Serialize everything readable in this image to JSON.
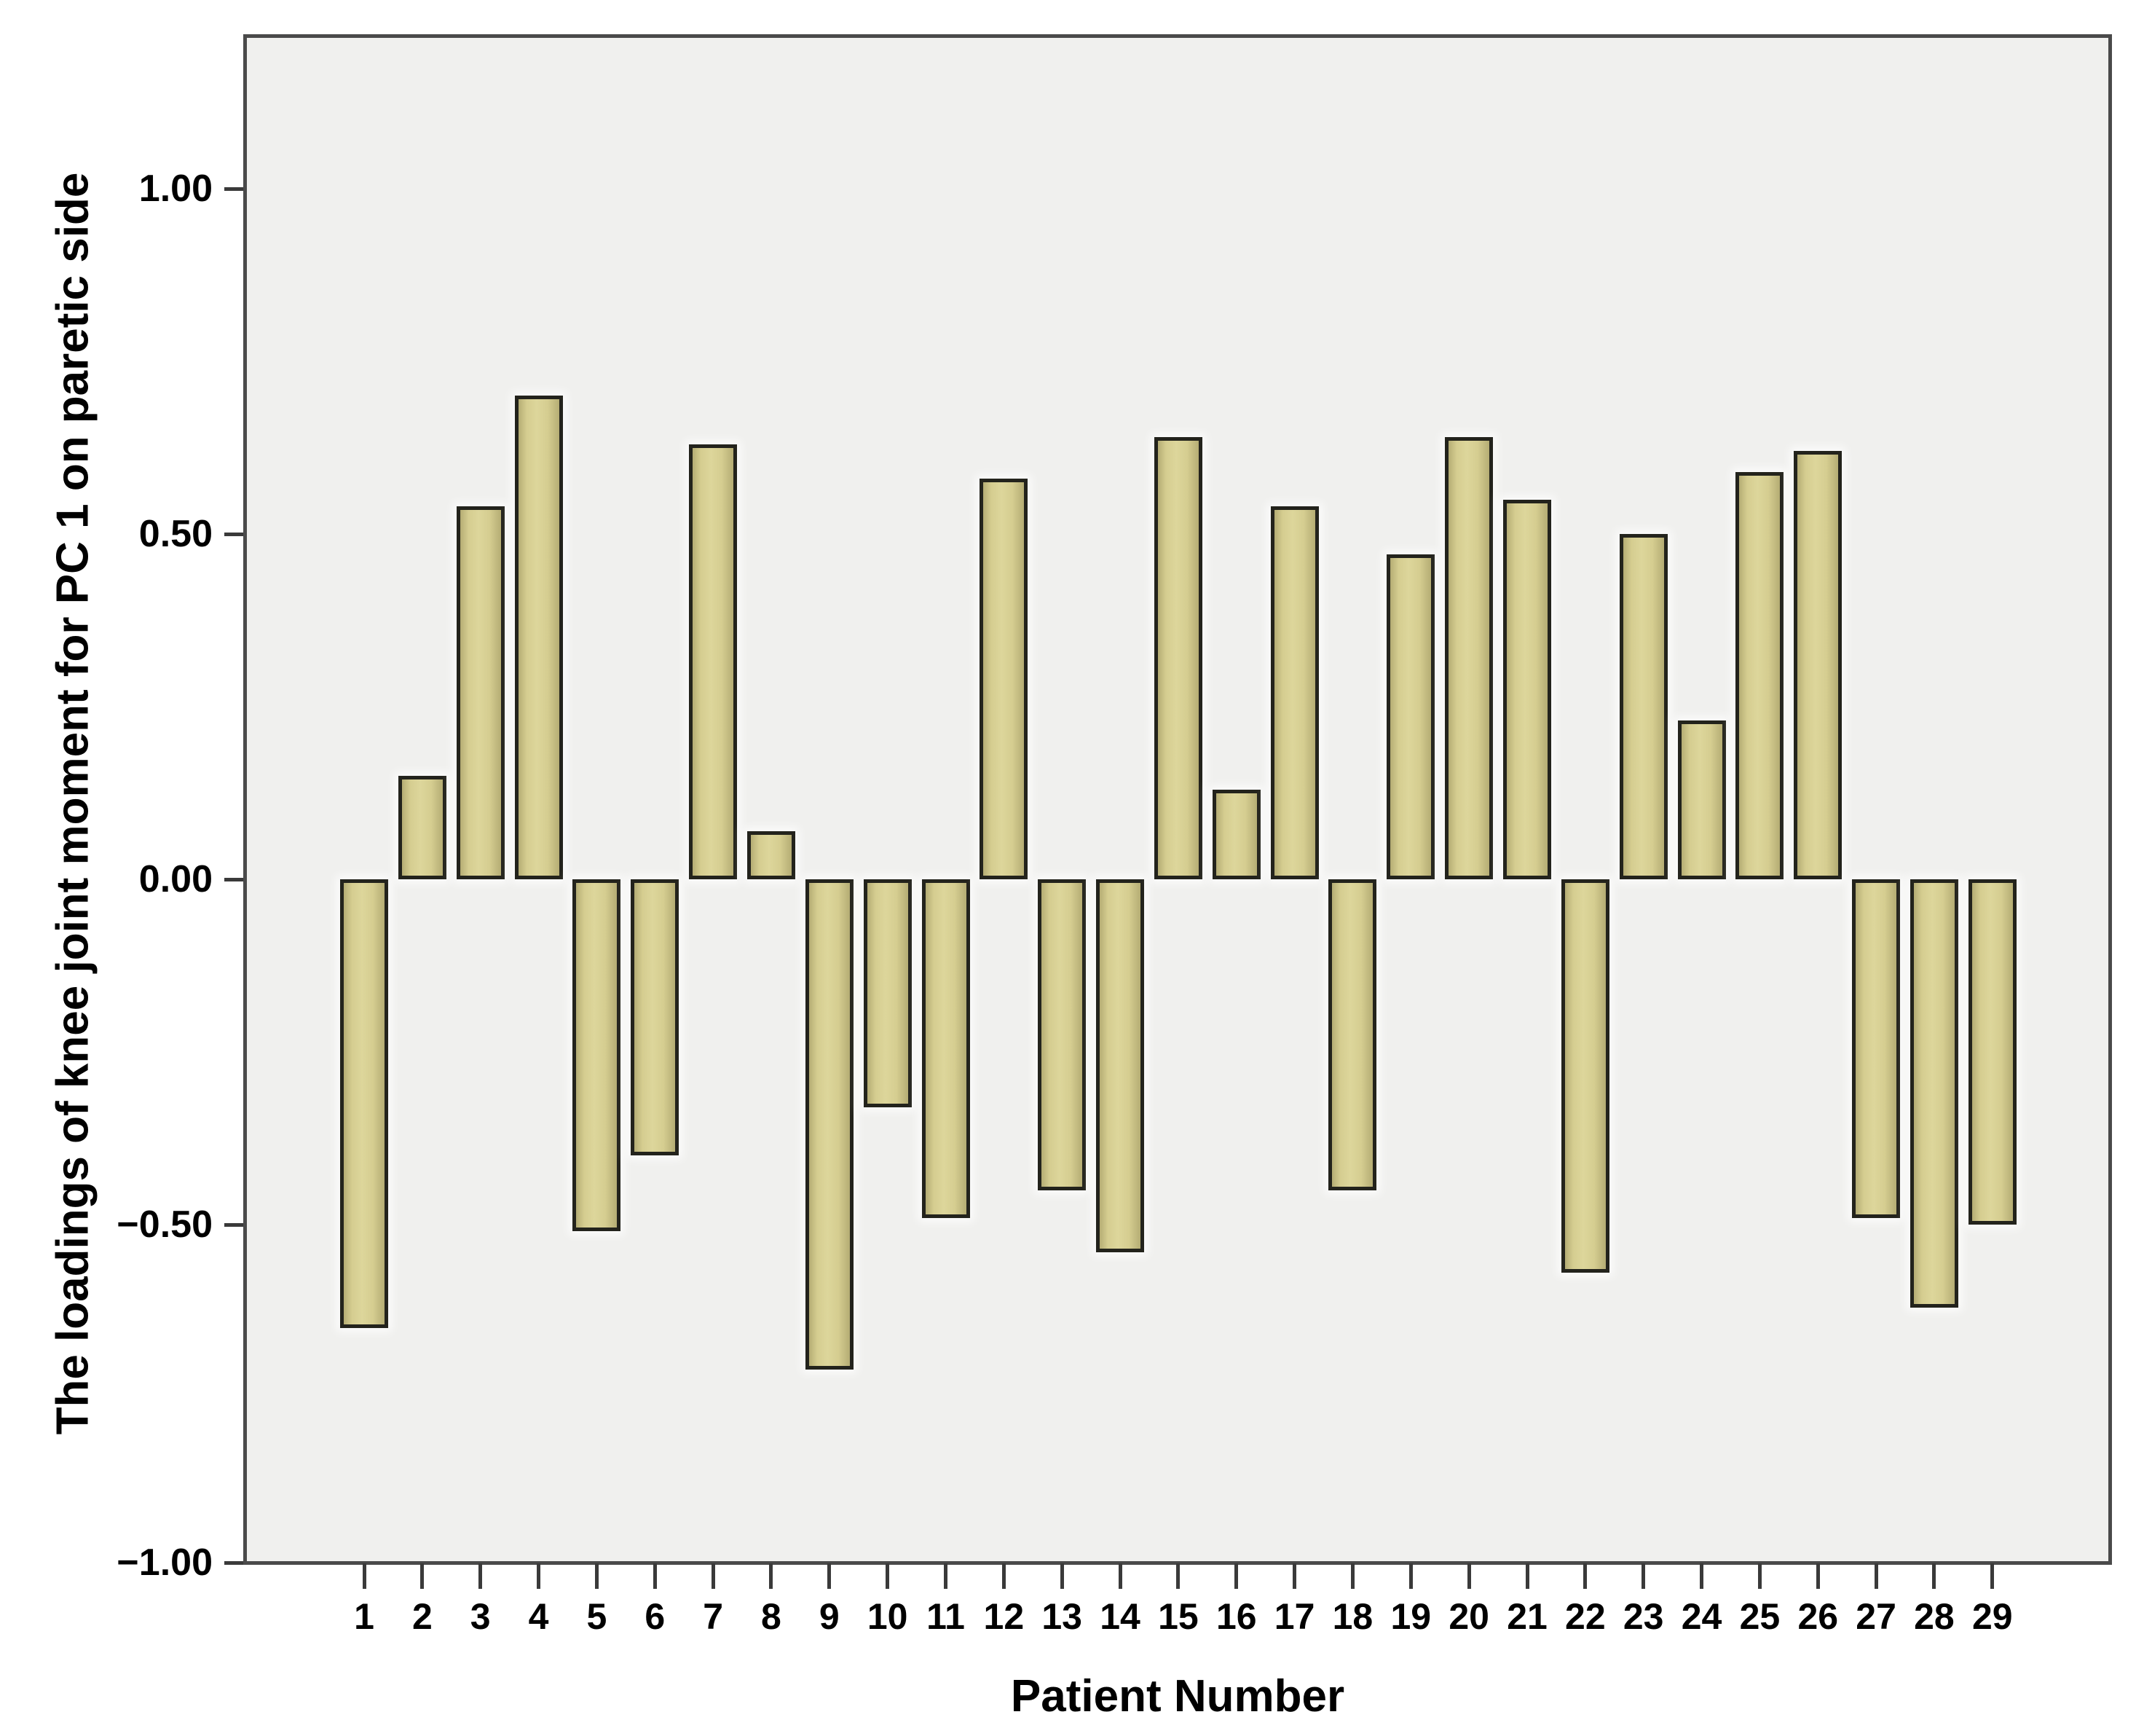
{
  "chart_data": {
    "type": "bar",
    "title": "",
    "xlabel": "Patient Number",
    "ylabel": "The loadings of knee joint moment for PC 1 on paretic side",
    "categories": [
      "1",
      "2",
      "3",
      "4",
      "5",
      "6",
      "7",
      "8",
      "9",
      "10",
      "11",
      "12",
      "13",
      "14",
      "15",
      "16",
      "17",
      "18",
      "19",
      "20",
      "21",
      "22",
      "23",
      "24",
      "25",
      "26",
      "27",
      "28",
      "29"
    ],
    "values": [
      -0.65,
      0.15,
      0.54,
      0.7,
      -0.51,
      -0.4,
      0.63,
      0.07,
      -0.71,
      -0.33,
      -0.49,
      0.58,
      -0.45,
      -0.54,
      0.64,
      0.13,
      0.54,
      -0.45,
      0.47,
      0.64,
      0.55,
      -0.57,
      0.5,
      0.23,
      0.59,
      0.62,
      -0.49,
      -0.62,
      -0.5
    ],
    "y_ticks": [
      {
        "label": "1.00",
        "value": 1.0
      },
      {
        "label": "0.50",
        "value": 0.5
      },
      {
        "label": "0.00",
        "value": 0.0
      },
      {
        "label": "−0.50",
        "value": -0.5
      },
      {
        "label": "−1.00",
        "value": -1.0
      }
    ],
    "ylim": [
      -1.0,
      1.224
    ],
    "grid": false,
    "legend": null,
    "colors": {
      "bar_fill": "#d5cd90",
      "bar_fill_light": "#ddd69b",
      "bar_fill_dark": "#b5ad74",
      "bar_border": "#23231c",
      "plot_bg": "#f0f0ee",
      "plot_border": "#4a4a4a",
      "page_bg": "#ffffff",
      "text": "#000000"
    }
  }
}
